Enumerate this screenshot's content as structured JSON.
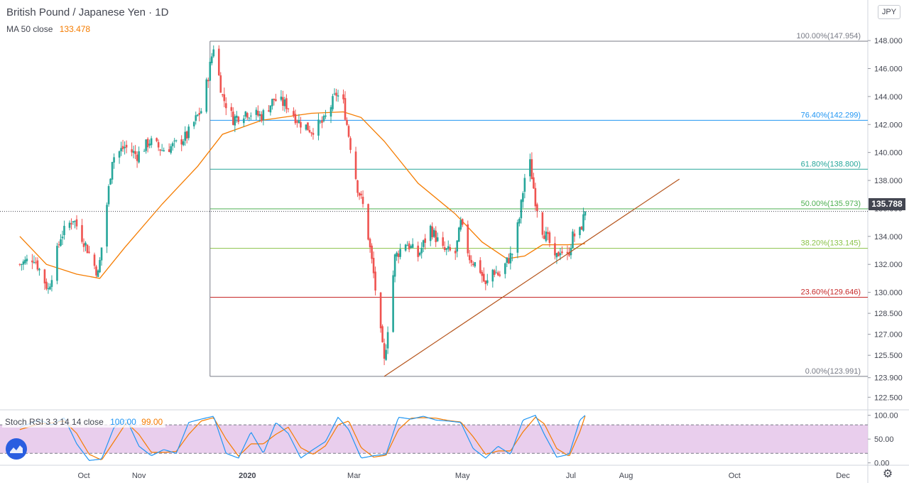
{
  "header": {
    "title": "British Pound / Japanese Yen · 1D",
    "ma_label": "MA 50 close",
    "ma_value": "133.478",
    "currency": "JPY",
    "last_price": "135.788"
  },
  "stoch_legend": {
    "label": "Stoch RSI 3 3 14 14 close",
    "k_value": "100.00",
    "d_value": "99.00"
  },
  "colors": {
    "up": "#26a69a",
    "down": "#ef5350",
    "ma": "#f57c00",
    "k_line": "#2196f3",
    "d_line": "#f57c00",
    "trendline": "#b5541b",
    "rsi_band": "#e1bee7",
    "fib_0": "#787b86",
    "fib_236": "#c62828",
    "fib_382": "#8bc34a",
    "fib_50": "#4caf50",
    "fib_618": "#26a69a",
    "fib_764": "#2196f3",
    "fib_100": "#787b86"
  },
  "icons": {
    "logo": "tradingview-logo-icon",
    "settings": "gear-icon"
  },
  "chart_data": {
    "type": "candlestick",
    "price_axis": {
      "ticks": [
        "148.000",
        "146.000",
        "144.000",
        "142.000",
        "140.000",
        "138.000",
        "136.000",
        "134.000",
        "132.000",
        "130.000",
        "128.500",
        "127.000",
        "125.500",
        "123.900",
        "122.500"
      ],
      "range": [
        121.6,
        150.9
      ]
    },
    "stoch_axis": {
      "ticks": [
        "100.00",
        "50.00",
        "0.00"
      ],
      "range": [
        -5,
        110
      ],
      "bands": [
        20,
        80
      ]
    },
    "time_axis": [
      {
        "label": "Oct",
        "date": "2019-10-01"
      },
      {
        "label": "Nov",
        "date": "2019-11-01"
      },
      {
        "label": "2020",
        "date": "2020-01-01",
        "bold": true
      },
      {
        "label": "Mar",
        "date": "2020-03-01"
      },
      {
        "label": "May",
        "date": "2020-05-01"
      },
      {
        "label": "Jul",
        "date": "2020-07-01"
      },
      {
        "label": "Aug",
        "date": "2020-08-01"
      },
      {
        "label": "Oct",
        "date": "2020-10-01"
      },
      {
        "label": "Dec",
        "date": "2020-12-01"
      }
    ],
    "price_path": [
      [
        "2019-08-26",
        132.0
      ],
      [
        "2019-09-03",
        132.5
      ],
      [
        "2019-09-11",
        130.2
      ],
      [
        "2019-09-18",
        134.0
      ],
      [
        "2019-09-25",
        135.3
      ],
      [
        "2019-10-02",
        133.4
      ],
      [
        "2019-10-09",
        131.3
      ],
      [
        "2019-10-10",
        132.2
      ],
      [
        "2019-10-14",
        136.3
      ],
      [
        "2019-10-17",
        139.6
      ],
      [
        "2019-10-24",
        140.4
      ],
      [
        "2019-10-31",
        139.8
      ],
      [
        "2019-11-07",
        140.8
      ],
      [
        "2019-11-14",
        140.2
      ],
      [
        "2019-11-21",
        140.5
      ],
      [
        "2019-11-28",
        141.2
      ],
      [
        "2019-12-04",
        142.6
      ],
      [
        "2019-12-06",
        143.0
      ],
      [
        "2019-12-10",
        145.5
      ],
      [
        "2019-12-13",
        147.6
      ],
      [
        "2019-12-18",
        144.0
      ],
      [
        "2019-12-24",
        142.4
      ],
      [
        "2019-12-31",
        142.9
      ],
      [
        "2020-01-09",
        142.6
      ],
      [
        "2020-01-16",
        143.8
      ],
      [
        "2020-01-23",
        143.4
      ],
      [
        "2020-01-30",
        142.2
      ],
      [
        "2020-02-06",
        141.6
      ],
      [
        "2020-02-13",
        142.2
      ],
      [
        "2020-02-20",
        144.2
      ],
      [
        "2020-02-24",
        143.5
      ],
      [
        "2020-02-28",
        140.5
      ],
      [
        "2020-03-03",
        137.5
      ],
      [
        "2020-03-06",
        136.2
      ],
      [
        "2020-03-09",
        134.0
      ],
      [
        "2020-03-12",
        131.3
      ],
      [
        "2020-03-16",
        127.0
      ],
      [
        "2020-03-18",
        125.0
      ],
      [
        "2020-03-20",
        127.5
      ],
      [
        "2020-03-24",
        132.5
      ],
      [
        "2020-03-30",
        133.6
      ],
      [
        "2020-04-06",
        132.6
      ],
      [
        "2020-04-13",
        134.6
      ],
      [
        "2020-04-20",
        133.0
      ],
      [
        "2020-04-27",
        132.8
      ],
      [
        "2020-04-30",
        134.9
      ],
      [
        "2020-05-05",
        132.5
      ],
      [
        "2020-05-11",
        131.6
      ],
      [
        "2020-05-14",
        130.4
      ],
      [
        "2020-05-18",
        131.6
      ],
      [
        "2020-05-22",
        131.2
      ],
      [
        "2020-05-26",
        132.2
      ],
      [
        "2020-05-29",
        132.8
      ],
      [
        "2020-06-02",
        135.3
      ],
      [
        "2020-06-05",
        138.2
      ],
      [
        "2020-06-08",
        139.2
      ],
      [
        "2020-06-11",
        136.6
      ],
      [
        "2020-06-15",
        134.5
      ],
      [
        "2020-06-19",
        133.5
      ],
      [
        "2020-06-22",
        132.2
      ],
      [
        "2020-06-25",
        133.1
      ],
      [
        "2020-06-29",
        132.5
      ],
      [
        "2020-07-02",
        134.0
      ],
      [
        "2020-07-06",
        134.3
      ],
      [
        "2020-07-09",
        135.788
      ]
    ],
    "ma50_path": [
      [
        "2019-08-26",
        134.0
      ],
      [
        "2019-09-10",
        132.0
      ],
      [
        "2019-09-27",
        131.3
      ],
      [
        "2019-10-10",
        131.0
      ],
      [
        "2019-10-24",
        133.2
      ],
      [
        "2019-11-14",
        136.3
      ],
      [
        "2019-12-04",
        139.0
      ],
      [
        "2019-12-18",
        141.3
      ],
      [
        "2020-01-09",
        142.3
      ],
      [
        "2020-02-06",
        142.8
      ],
      [
        "2020-02-24",
        142.9
      ],
      [
        "2020-03-05",
        142.5
      ],
      [
        "2020-03-18",
        140.8
      ],
      [
        "2020-04-06",
        137.8
      ],
      [
        "2020-04-27",
        135.6
      ],
      [
        "2020-05-12",
        133.6
      ],
      [
        "2020-05-26",
        132.4
      ],
      [
        "2020-06-05",
        132.6
      ],
      [
        "2020-06-15",
        133.4
      ],
      [
        "2020-06-29",
        133.4
      ],
      [
        "2020-07-09",
        133.478
      ]
    ],
    "fib_levels": [
      {
        "label": "0.00%(123.991)",
        "value": 123.991,
        "color_key": "fib_0"
      },
      {
        "label": "23.60%(129.646)",
        "value": 129.646,
        "color_key": "fib_236"
      },
      {
        "label": "38.20%(133.145)",
        "value": 133.145,
        "color_key": "fib_382"
      },
      {
        "label": "50.00%(135.973)",
        "value": 135.973,
        "color_key": "fib_50"
      },
      {
        "label": "61.80%(138.800)",
        "value": 138.8,
        "color_key": "fib_618"
      },
      {
        "label": "76.40%(142.299)",
        "value": 142.299,
        "color_key": "fib_764"
      },
      {
        "label": "100.00%(147.954)",
        "value": 147.954,
        "color_key": "fib_100"
      }
    ],
    "fib_start": "2019-12-11",
    "trendline": [
      [
        "2020-03-18",
        123.991
      ],
      [
        "2020-08-31",
        138.1
      ]
    ],
    "stoch_k": [
      [
        "2019-08-26",
        75
      ],
      [
        "2019-09-06",
        90
      ],
      [
        "2019-09-13",
        80
      ],
      [
        "2019-09-20",
        95
      ],
      [
        "2019-09-27",
        40
      ],
      [
        "2019-10-04",
        5
      ],
      [
        "2019-10-11",
        8
      ],
      [
        "2019-10-18",
        75
      ],
      [
        "2019-10-25",
        92
      ],
      [
        "2019-11-01",
        35
      ],
      [
        "2019-11-08",
        15
      ],
      [
        "2019-11-15",
        28
      ],
      [
        "2019-11-22",
        20
      ],
      [
        "2019-11-29",
        85
      ],
      [
        "2019-12-06",
        92
      ],
      [
        "2019-12-13",
        98
      ],
      [
        "2019-12-20",
        20
      ],
      [
        "2019-12-27",
        10
      ],
      [
        "2020-01-03",
        65
      ],
      [
        "2020-01-10",
        20
      ],
      [
        "2020-01-17",
        85
      ],
      [
        "2020-01-24",
        62
      ],
      [
        "2020-01-31",
        10
      ],
      [
        "2020-02-07",
        28
      ],
      [
        "2020-02-14",
        45
      ],
      [
        "2020-02-21",
        96
      ],
      [
        "2020-02-27",
        70
      ],
      [
        "2020-03-05",
        10
      ],
      [
        "2020-03-12",
        15
      ],
      [
        "2020-03-19",
        18
      ],
      [
        "2020-03-26",
        96
      ],
      [
        "2020-04-02",
        92
      ],
      [
        "2020-04-09",
        98
      ],
      [
        "2020-04-16",
        90
      ],
      [
        "2020-04-23",
        88
      ],
      [
        "2020-04-30",
        85
      ],
      [
        "2020-05-07",
        30
      ],
      [
        "2020-05-14",
        10
      ],
      [
        "2020-05-21",
        35
      ],
      [
        "2020-05-28",
        18
      ],
      [
        "2020-06-04",
        90
      ],
      [
        "2020-06-11",
        100
      ],
      [
        "2020-06-16",
        60
      ],
      [
        "2020-06-23",
        12
      ],
      [
        "2020-06-30",
        18
      ],
      [
        "2020-07-06",
        90
      ],
      [
        "2020-07-09",
        100
      ]
    ],
    "stoch_d": [
      [
        "2019-08-26",
        70
      ],
      [
        "2019-09-06",
        82
      ],
      [
        "2019-09-13",
        84
      ],
      [
        "2019-09-20",
        88
      ],
      [
        "2019-09-27",
        62
      ],
      [
        "2019-10-04",
        18
      ],
      [
        "2019-10-11",
        6
      ],
      [
        "2019-10-18",
        45
      ],
      [
        "2019-10-25",
        85
      ],
      [
        "2019-11-01",
        60
      ],
      [
        "2019-11-08",
        22
      ],
      [
        "2019-11-15",
        22
      ],
      [
        "2019-11-22",
        24
      ],
      [
        "2019-11-29",
        60
      ],
      [
        "2019-12-06",
        88
      ],
      [
        "2019-12-13",
        95
      ],
      [
        "2019-12-20",
        50
      ],
      [
        "2019-12-27",
        14
      ],
      [
        "2020-01-03",
        40
      ],
      [
        "2020-01-10",
        40
      ],
      [
        "2020-01-17",
        60
      ],
      [
        "2020-01-24",
        75
      ],
      [
        "2020-01-31",
        32
      ],
      [
        "2020-02-07",
        18
      ],
      [
        "2020-02-14",
        36
      ],
      [
        "2020-02-21",
        80
      ],
      [
        "2020-02-27",
        88
      ],
      [
        "2020-03-05",
        32
      ],
      [
        "2020-03-12",
        12
      ],
      [
        "2020-03-19",
        16
      ],
      [
        "2020-03-26",
        70
      ],
      [
        "2020-04-02",
        94
      ],
      [
        "2020-04-09",
        95
      ],
      [
        "2020-04-16",
        94
      ],
      [
        "2020-04-23",
        89
      ],
      [
        "2020-04-30",
        86
      ],
      [
        "2020-05-07",
        55
      ],
      [
        "2020-05-14",
        18
      ],
      [
        "2020-05-21",
        25
      ],
      [
        "2020-05-28",
        25
      ],
      [
        "2020-06-04",
        65
      ],
      [
        "2020-06-11",
        96
      ],
      [
        "2020-06-16",
        82
      ],
      [
        "2020-06-23",
        30
      ],
      [
        "2020-06-30",
        14
      ],
      [
        "2020-07-06",
        65
      ],
      [
        "2020-07-09",
        99
      ]
    ]
  }
}
